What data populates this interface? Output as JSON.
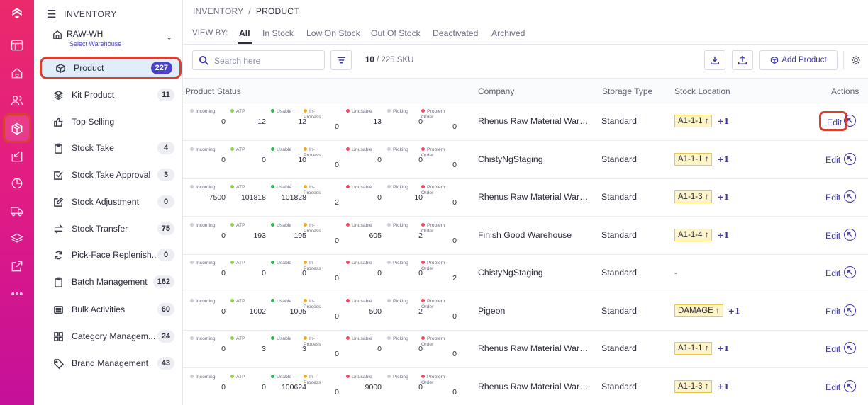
{
  "sidebar": {
    "title": "INVENTORY",
    "warehouse": {
      "name": "RAW-WH",
      "link": "Select Warehouse"
    },
    "items": [
      {
        "label": "Product",
        "count": "227"
      },
      {
        "label": "Kit Product",
        "count": "11"
      },
      {
        "label": "Top Selling",
        "count": ""
      },
      {
        "label": "Stock Take",
        "count": "4"
      },
      {
        "label": "Stock Take Approval",
        "count": "3"
      },
      {
        "label": "Stock Adjustment",
        "count": "0"
      },
      {
        "label": "Stock Transfer",
        "count": "75"
      },
      {
        "label": "Pick-Face Replenish...",
        "count": "0"
      },
      {
        "label": "Batch Management",
        "count": "162"
      },
      {
        "label": "Bulk Activities",
        "count": "60"
      },
      {
        "label": "Category Managem...",
        "count": "24"
      },
      {
        "label": "Brand Management",
        "count": "43"
      }
    ]
  },
  "breadcrumb": {
    "root": "INVENTORY",
    "sep": "/",
    "current": "PRODUCT"
  },
  "view_by": {
    "label": "VIEW BY:",
    "tabs": [
      "All",
      "In Stock",
      "Low On Stock",
      "Out Of Stock",
      "Deactivated",
      "Archived"
    ]
  },
  "toolbar": {
    "search_placeholder": "Search here",
    "count_shown": "10",
    "count_total": " / 225 SKU",
    "add_label": "Add Product"
  },
  "table": {
    "headers": [
      "Product Status",
      "Company",
      "Storage Type",
      "Stock Location",
      "Actions"
    ],
    "metric_labels": [
      "Incoming",
      "ATP",
      "Usable",
      "In-\nProcess",
      "Unusable",
      "Picking",
      "Problem\nOrder"
    ],
    "metric_colors": [
      "#c9ccd4",
      "#8fd14f",
      "#34b05a",
      "#f3a71c",
      "#ef4a5f",
      "#c9ccd4",
      "#ef4a5f"
    ],
    "edit_label": "Edit",
    "rows": [
      {
        "m": [
          "0",
          "12",
          "12",
          "0",
          "13",
          "0",
          "0"
        ],
        "company": "Rhenus Raw Material Ware...",
        "storage": "Standard",
        "location": "A1-1-1 ↑",
        "more": "+1"
      },
      {
        "m": [
          "0",
          "0",
          "10",
          "0",
          "0",
          "0",
          "0"
        ],
        "company": "ChistyNgStaging",
        "storage": "Standard",
        "location": "A1-1-1 ↑",
        "more": "+1"
      },
      {
        "m": [
          "7500",
          "101818",
          "101828",
          "2",
          "0",
          "10",
          "0"
        ],
        "company": "Rhenus Raw Material Ware...",
        "storage": "Standard",
        "location": "A1-1-3 ↑",
        "more": "+1"
      },
      {
        "m": [
          "0",
          "193",
          "195",
          "0",
          "605",
          "2",
          "0"
        ],
        "company": "Finish Good Warehouse",
        "storage": "Standard",
        "location": "A1-1-4 ↑",
        "more": "+1"
      },
      {
        "m": [
          "0",
          "0",
          "0",
          "0",
          "0",
          "0",
          "2"
        ],
        "company": "ChistyNgStaging",
        "storage": "Standard",
        "location": "-",
        "more": ""
      },
      {
        "m": [
          "0",
          "1002",
          "1005",
          "0",
          "500",
          "2",
          "0"
        ],
        "company": "Pigeon",
        "storage": "Standard",
        "location": "DAMAGE ↑",
        "more": "+1"
      },
      {
        "m": [
          "0",
          "3",
          "3",
          "0",
          "0",
          "0",
          "0"
        ],
        "company": "Rhenus Raw Material Ware...",
        "storage": "Standard",
        "location": "A1-1-1 ↑",
        "more": "+1"
      },
      {
        "m": [
          "0",
          "0",
          "100624",
          "0",
          "9000",
          "0",
          "0"
        ],
        "company": "Rhenus Raw Material Ware...",
        "storage": "Standard",
        "location": "A1-1-3 ↑",
        "more": "+1"
      }
    ]
  }
}
